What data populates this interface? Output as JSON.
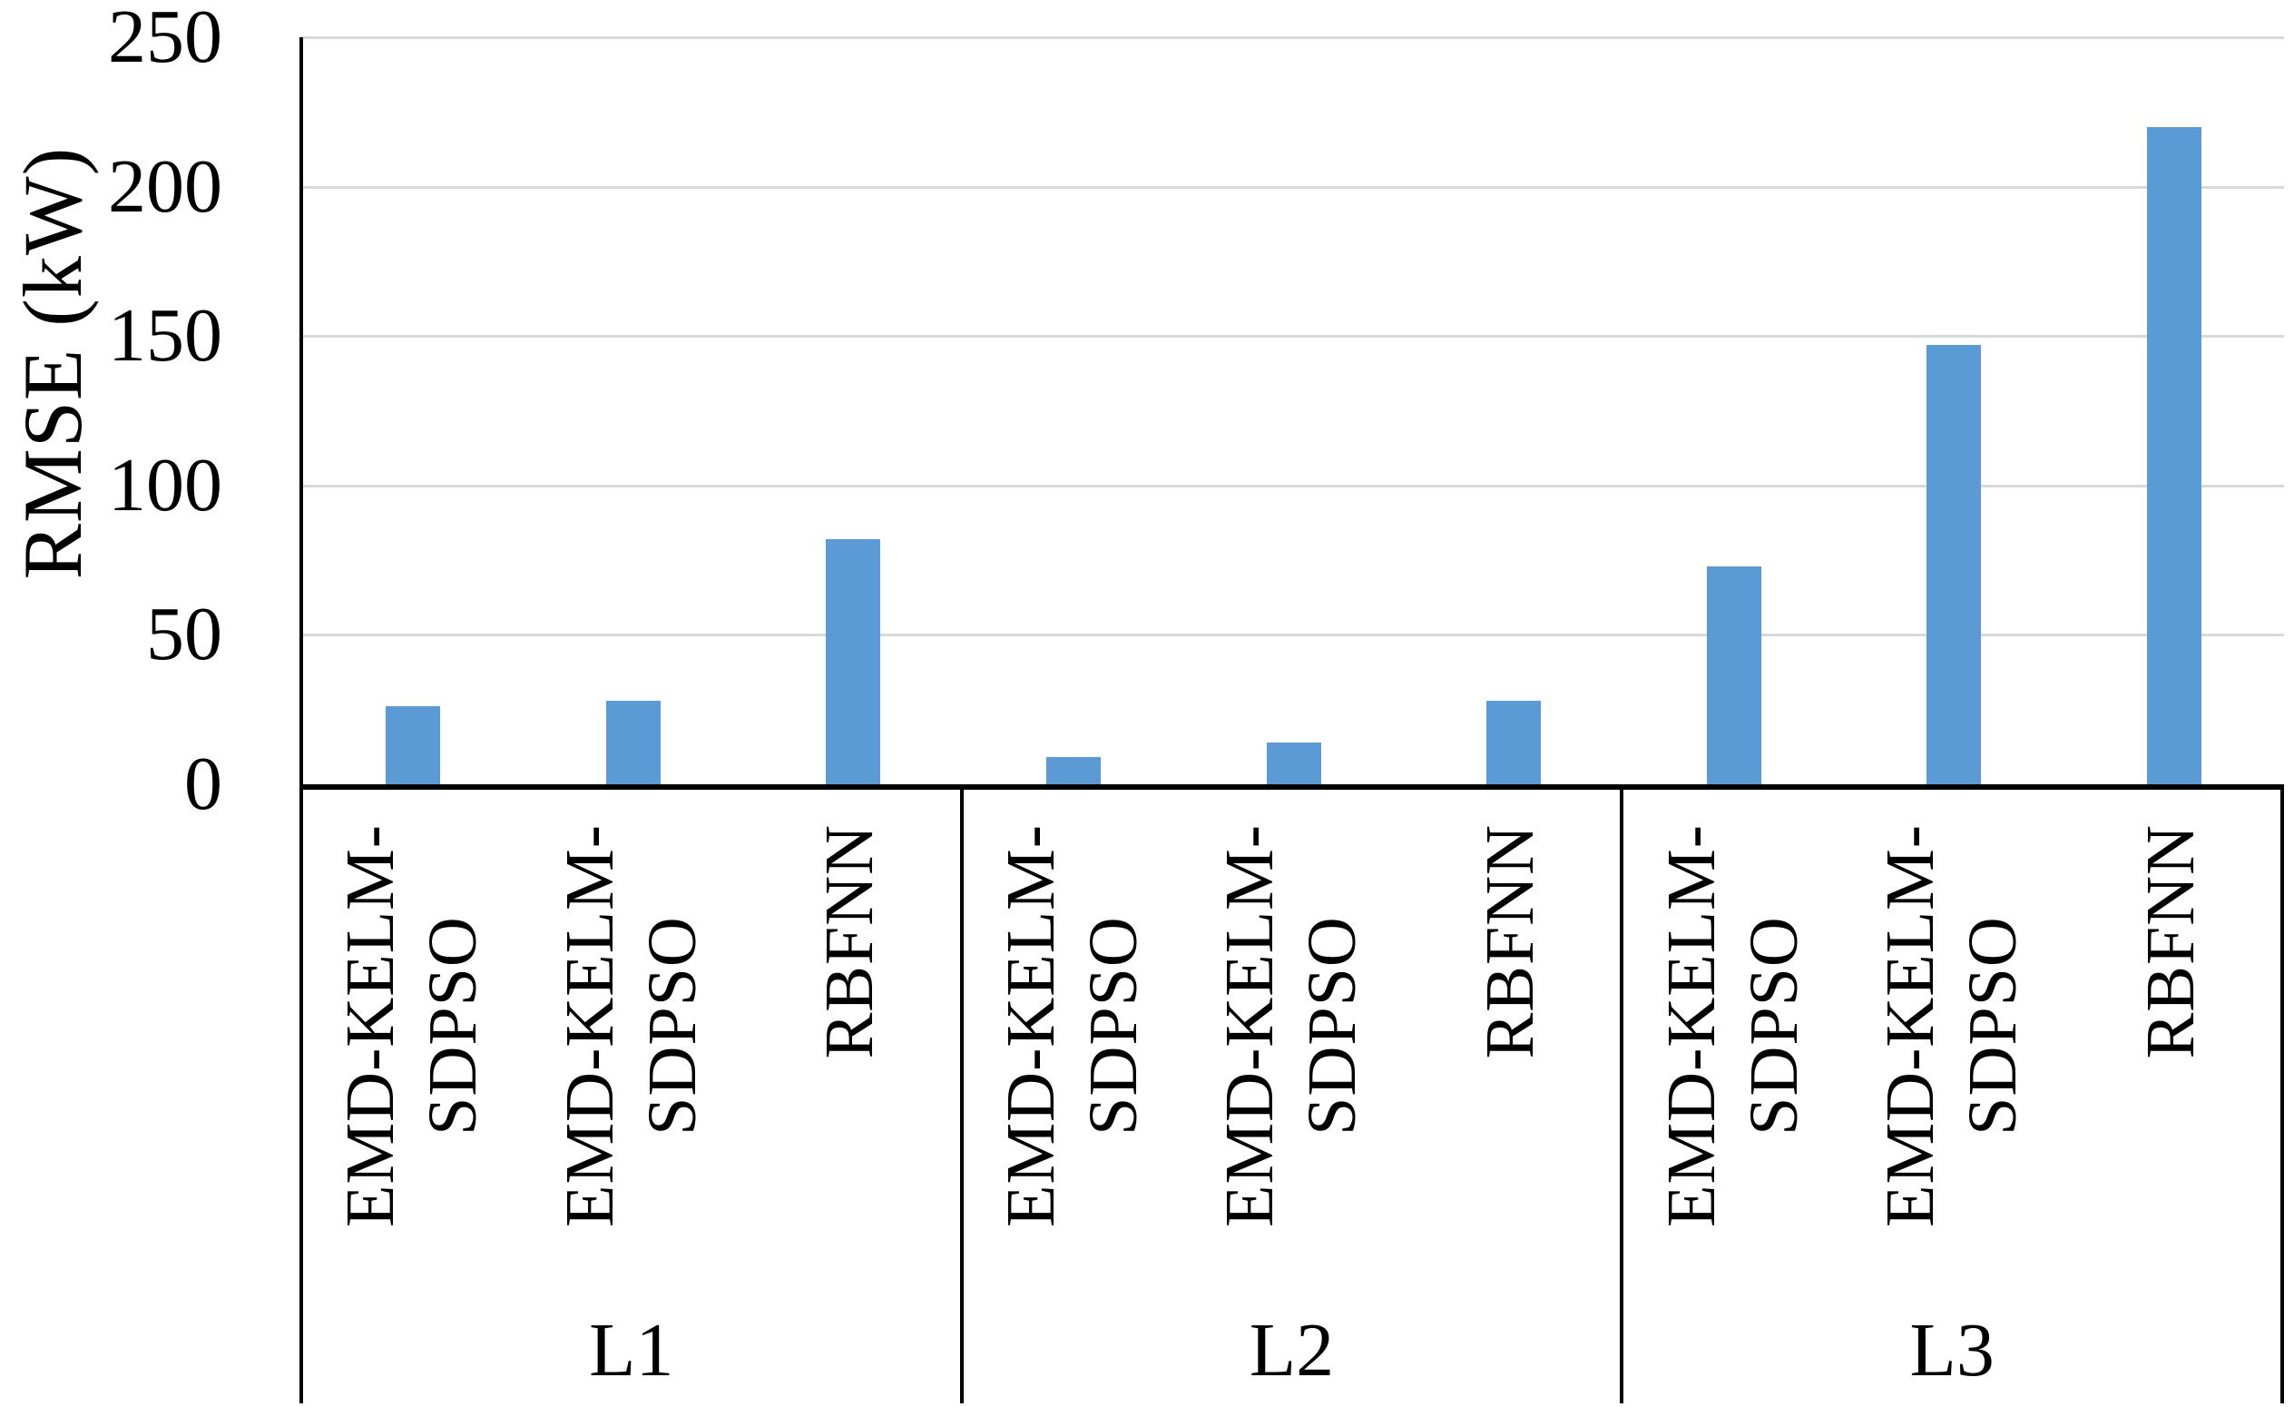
{
  "chart_data": {
    "type": "bar",
    "title": "",
    "xlabel": "",
    "ylabel": "RMSE (kW)",
    "ylim": [
      0,
      250
    ],
    "yticks": [
      250,
      200,
      150,
      100,
      50,
      0
    ],
    "grid": "horizontal",
    "gridline_color": "#d9d9d9",
    "legend_position": "none",
    "bar_color": "#5b9bd5",
    "categories": [
      "L1",
      "L2",
      "L3"
    ],
    "series_note": "three bars per group, single data series color",
    "groups": [
      {
        "label": "L1",
        "bars": [
          {
            "label": "EMD-KELM-SDPSO",
            "label_lines": [
              "EMD-KELM-",
              "SDPSO"
            ],
            "value": 26
          },
          {
            "label": "EMD-KELM-SDPSO",
            "label_lines": [
              "EMD-KELM-",
              "SDPSO"
            ],
            "value": 28
          },
          {
            "label": "RBFNN",
            "label_lines": [
              "RBFNN"
            ],
            "value": 82
          }
        ]
      },
      {
        "label": "L2",
        "bars": [
          {
            "label": "EMD-KELM-SDPSO",
            "label_lines": [
              "EMD-KELM-",
              "SDPSO"
            ],
            "value": 9
          },
          {
            "label": "EMD-KELM-SDPSO",
            "label_lines": [
              "EMD-KELM-",
              "SDPSO"
            ],
            "value": 14
          },
          {
            "label": "RBFNN",
            "label_lines": [
              "RBFNN"
            ],
            "value": 28
          }
        ]
      },
      {
        "label": "L3",
        "bars": [
          {
            "label": "EMD-KELM-SDPSO",
            "label_lines": [
              "EMD-KELM-",
              "SDPSO"
            ],
            "value": 73
          },
          {
            "label": "EMD-KELM-SDPSO",
            "label_lines": [
              "EMD-KELM-",
              "SDPSO"
            ],
            "value": 147
          },
          {
            "label": "RBFNN",
            "label_lines": [
              "RBFNN"
            ],
            "value": 220
          }
        ]
      }
    ],
    "axis_color": "#000000"
  }
}
